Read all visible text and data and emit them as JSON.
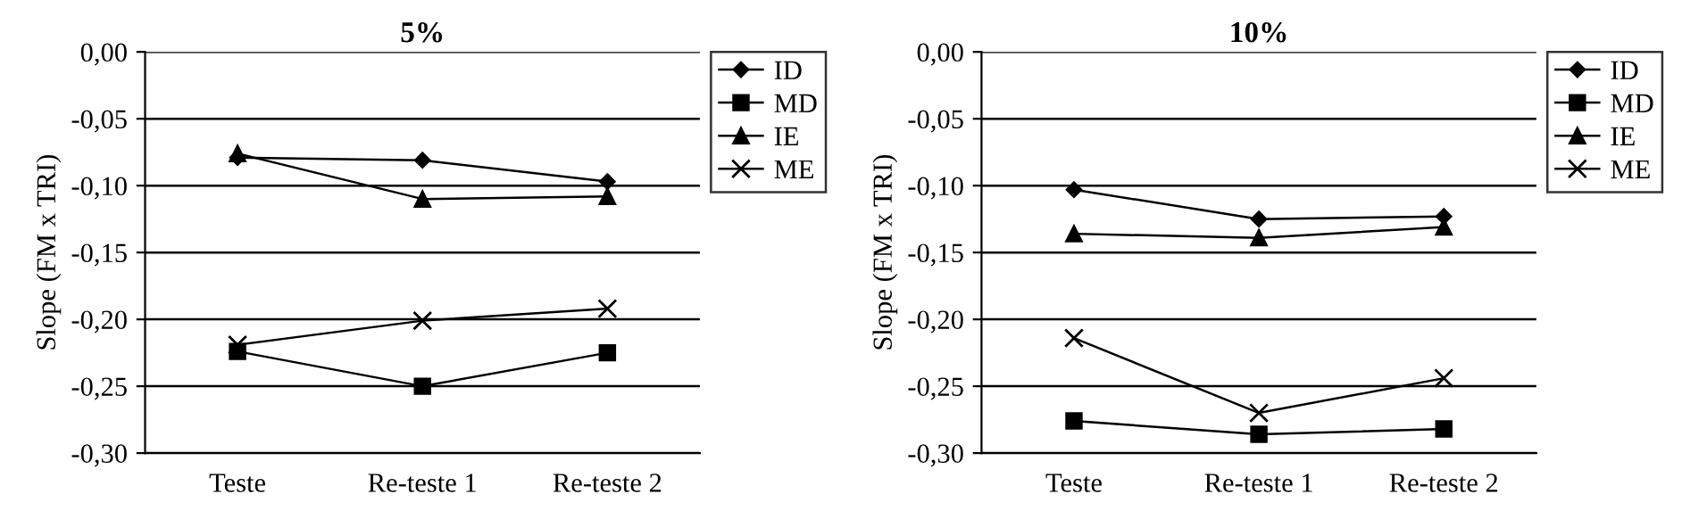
{
  "chart_data": [
    {
      "type": "line",
      "title": "5%",
      "ylabel": "Slope (FM x TRI)",
      "categories": [
        "Teste",
        "Re-teste 1",
        "Re-teste 2"
      ],
      "series": [
        {
          "name": "ID",
          "color": "#000000",
          "marker": "diamond",
          "values": [
            -0.079,
            -0.081,
            -0.097
          ]
        },
        {
          "name": "MD",
          "color": "#000000",
          "marker": "square",
          "values": [
            -0.224,
            -0.25,
            -0.225
          ]
        },
        {
          "name": "IE",
          "color": "#000000",
          "marker": "triangle",
          "values": [
            -0.076,
            -0.11,
            -0.108
          ]
        },
        {
          "name": "ME",
          "color": "#000000",
          "marker": "cross",
          "values": [
            -0.219,
            -0.201,
            -0.192
          ]
        }
      ],
      "ylim": [
        -0.3,
        0.0
      ],
      "yticks": [
        {
          "value": -0.3,
          "label": "-0,30"
        },
        {
          "value": -0.25,
          "label": "-0,25"
        },
        {
          "value": -0.2,
          "label": "-0,20"
        },
        {
          "value": -0.15,
          "label": "-0,15"
        },
        {
          "value": -0.1,
          "label": "-0,10"
        },
        {
          "value": -0.05,
          "label": "-0,05"
        },
        {
          "value": 0.0,
          "label": "0,00"
        }
      ],
      "grid": "y",
      "legend": "right"
    },
    {
      "type": "line",
      "title": "10%",
      "ylabel": "Slope (FM x TRI)",
      "categories": [
        "Teste",
        "Re-teste 1",
        "Re-teste 2"
      ],
      "series": [
        {
          "name": "ID",
          "color": "#000000",
          "marker": "diamond",
          "values": [
            -0.103,
            -0.125,
            -0.123
          ]
        },
        {
          "name": "MD",
          "color": "#000000",
          "marker": "square",
          "values": [
            -0.276,
            -0.286,
            -0.282
          ]
        },
        {
          "name": "IE",
          "color": "#000000",
          "marker": "triangle",
          "values": [
            -0.136,
            -0.139,
            -0.131
          ]
        },
        {
          "name": "ME",
          "color": "#000000",
          "marker": "cross",
          "values": [
            -0.214,
            -0.27,
            -0.244
          ]
        }
      ],
      "ylim": [
        -0.3,
        0.0
      ],
      "yticks": [
        {
          "value": -0.3,
          "label": "-0,30"
        },
        {
          "value": -0.25,
          "label": "-0,25"
        },
        {
          "value": -0.2,
          "label": "-0,20"
        },
        {
          "value": -0.15,
          "label": "-0,15"
        },
        {
          "value": -0.1,
          "label": "-0,10"
        },
        {
          "value": -0.05,
          "label": "-0,05"
        },
        {
          "value": 0.0,
          "label": "0,00"
        }
      ],
      "grid": "y",
      "legend": "right"
    }
  ]
}
